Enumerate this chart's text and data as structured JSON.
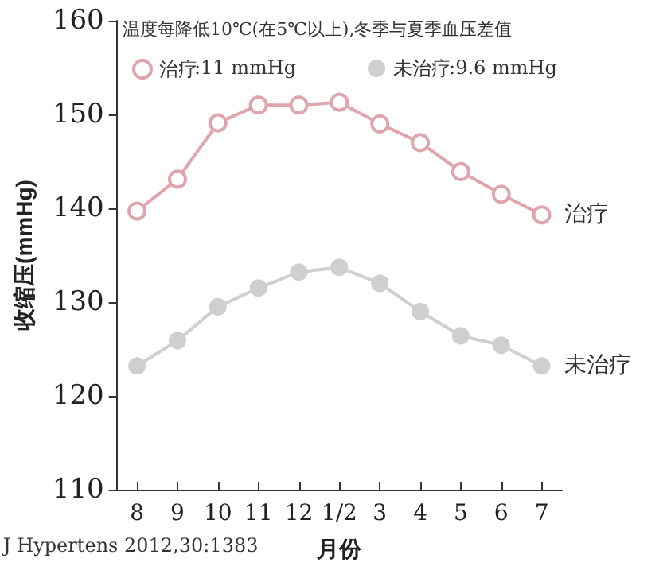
{
  "chart_data": {
    "type": "line",
    "title": "温度每降低10℃(在5℃以上),冬季与夏季血压差值",
    "xlabel": "月份",
    "ylabel": "收缩压(mmHg)",
    "categories": [
      "8",
      "9",
      "10",
      "11",
      "12",
      "1/2",
      "3",
      "4",
      "5",
      "6",
      "7"
    ],
    "series": [
      {
        "name": "治疗",
        "color": "#e0a4ac",
        "values": [
          139.7,
          143.1,
          149.1,
          151.0,
          151.0,
          151.3,
          149.0,
          147.0,
          143.9,
          141.5,
          139.3
        ]
      },
      {
        "name": "未治疗",
        "color": "#cfcfcf",
        "values": [
          123.2,
          125.9,
          129.5,
          131.5,
          133.2,
          133.7,
          132.0,
          129.0,
          126.4,
          125.4,
          123.2
        ]
      }
    ],
    "annotations": [
      ":11 mmHg",
      ":9.6 mmHg",
      "J Hypertens 2012,30:1383"
    ],
    "ylim": [
      110,
      160
    ],
    "yticks": [
      110,
      120,
      130,
      140,
      150,
      160
    ],
    "grid": false,
    "legend": "top",
    "marker": "circle",
    "line_style": "solid"
  }
}
